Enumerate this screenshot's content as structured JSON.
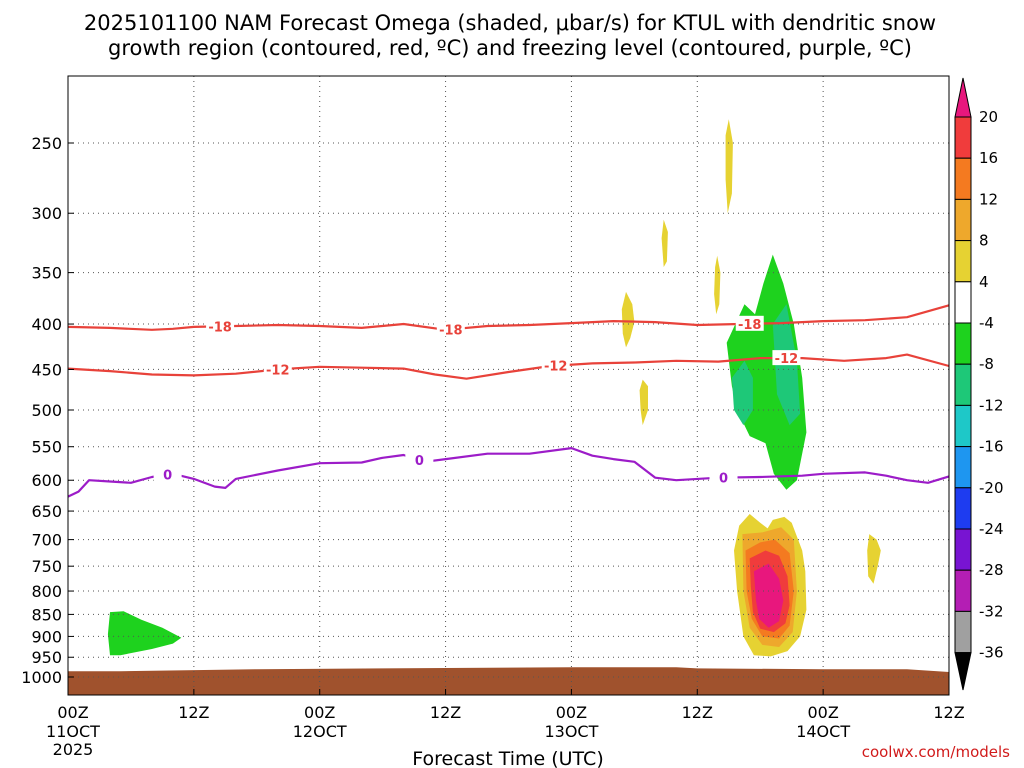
{
  "chart_data": {
    "type": "heatmap",
    "title_line1": "2025101100 NAM Forecast Omega (shaded, μbar/s) for KTUL with dendritic snow",
    "title_line2": "growth region (contoured, red, ºC) and freezing level (contoured, purple, ºC)",
    "xlabel": "Forecast Time (UTC)",
    "credit": "coolwx.com/models",
    "x_ticks": [
      {
        "hour": 0,
        "top": "00Z",
        "mid": "11OCT",
        "bottom": "2025"
      },
      {
        "hour": 12,
        "top": "12Z",
        "mid": "",
        "bottom": ""
      },
      {
        "hour": 24,
        "top": "00Z",
        "mid": "12OCT",
        "bottom": ""
      },
      {
        "hour": 36,
        "top": "12Z",
        "mid": "",
        "bottom": ""
      },
      {
        "hour": 48,
        "top": "00Z",
        "mid": "13OCT",
        "bottom": ""
      },
      {
        "hour": 60,
        "top": "12Z",
        "mid": "",
        "bottom": ""
      },
      {
        "hour": 72,
        "top": "00Z",
        "mid": "14OCT",
        "bottom": ""
      },
      {
        "hour": 84,
        "top": "12Z",
        "mid": "",
        "bottom": ""
      }
    ],
    "x_range_hours": [
      0,
      84
    ],
    "y_ticks_hpa": [
      250,
      300,
      350,
      400,
      450,
      500,
      550,
      600,
      650,
      700,
      750,
      800,
      850,
      900,
      950,
      1000
    ],
    "y_range_hpa": [
      200,
      1025
    ],
    "y_scale": "log-pressure",
    "grid": true,
    "colorbar": {
      "levels": [
        "20",
        "16",
        "12",
        "8",
        "4",
        "-4",
        "-8",
        "-12",
        "-16",
        "-20",
        "-24",
        "-28",
        "-32",
        "-36"
      ],
      "colors": [
        "#e8177d",
        "#f03c3c",
        "#f47a20",
        "#eea82c",
        "#e6d232",
        "#ffffff",
        "#1ed21e",
        "#1ec878",
        "#1ec8c8",
        "#1e96f0",
        "#1e3cf0",
        "#7814d2",
        "#b41eb4",
        "#a0a0a0",
        "#000000"
      ]
    },
    "contours": [
      {
        "label": "-18",
        "color": "#e8423a",
        "points": [
          [
            0,
            403
          ],
          [
            4,
            404
          ],
          [
            8,
            406
          ],
          [
            10,
            405
          ],
          [
            12,
            403
          ],
          [
            16,
            402
          ],
          [
            20,
            401
          ],
          [
            24,
            402
          ],
          [
            28,
            404
          ],
          [
            32,
            400
          ],
          [
            36,
            406
          ],
          [
            40,
            402
          ],
          [
            44,
            401
          ],
          [
            48,
            399
          ],
          [
            52,
            397
          ],
          [
            56,
            398
          ],
          [
            60,
            401
          ],
          [
            64,
            400
          ],
          [
            68,
            399
          ],
          [
            72,
            397
          ],
          [
            76,
            396
          ],
          [
            80,
            393
          ],
          [
            84,
            381
          ]
        ],
        "label_hours": [
          14.5,
          36.5,
          65
        ]
      },
      {
        "label": "-12",
        "color": "#e8423a",
        "points": [
          [
            0,
            449
          ],
          [
            4,
            452
          ],
          [
            8,
            456
          ],
          [
            12,
            457
          ],
          [
            16,
            455
          ],
          [
            20,
            450
          ],
          [
            24,
            447
          ],
          [
            28,
            448
          ],
          [
            32,
            449
          ],
          [
            35,
            456
          ],
          [
            38,
            461
          ],
          [
            42,
            453
          ],
          [
            46,
            446
          ],
          [
            50,
            443
          ],
          [
            54,
            442
          ],
          [
            58,
            440
          ],
          [
            62,
            441
          ],
          [
            66,
            437
          ],
          [
            70,
            437
          ],
          [
            74,
            440
          ],
          [
            78,
            437
          ],
          [
            80,
            433
          ],
          [
            84,
            446
          ]
        ],
        "label_hours": [
          20,
          46.5,
          68.5
        ]
      },
      {
        "label": "0",
        "color": "#9c1cc8",
        "points": [
          [
            0,
            626
          ],
          [
            1,
            618
          ],
          [
            2,
            600
          ],
          [
            4,
            602
          ],
          [
            6,
            604
          ],
          [
            8,
            595
          ],
          [
            10,
            590
          ],
          [
            12,
            598
          ],
          [
            14,
            610
          ],
          [
            15,
            612
          ],
          [
            16,
            598
          ],
          [
            20,
            585
          ],
          [
            24,
            574
          ],
          [
            28,
            573
          ],
          [
            30,
            566
          ],
          [
            32,
            562
          ],
          [
            34,
            572
          ],
          [
            36,
            568
          ],
          [
            40,
            560
          ],
          [
            44,
            560
          ],
          [
            48,
            552
          ],
          [
            50,
            563
          ],
          [
            52,
            568
          ],
          [
            54,
            572
          ],
          [
            56,
            596
          ],
          [
            58,
            600
          ],
          [
            62,
            596
          ],
          [
            66,
            595
          ],
          [
            70,
            593
          ],
          [
            72,
            590
          ],
          [
            76,
            588
          ],
          [
            78,
            593
          ],
          [
            80,
            600
          ],
          [
            82,
            604
          ],
          [
            84,
            594
          ]
        ],
        "label_hours": [
          9.5,
          33.5,
          62.5
        ]
      }
    ],
    "omega_regions": [
      {
        "omega": -8,
        "pts": [
          [
            4,
            845
          ],
          [
            5.3,
            843
          ],
          [
            7,
            862
          ],
          [
            9,
            880
          ],
          [
            10.8,
            903
          ],
          [
            10,
            917
          ],
          [
            8,
            930
          ],
          [
            5,
            945
          ],
          [
            4,
            945
          ],
          [
            3.8,
            895
          ]
        ]
      },
      {
        "omega": 4,
        "pts": [
          [
            53.2,
            368
          ],
          [
            53.8,
            380
          ],
          [
            54,
            398
          ],
          [
            53.6,
            415
          ],
          [
            53.2,
            425
          ],
          [
            52.9,
            410
          ],
          [
            52.8,
            385
          ]
        ]
      },
      {
        "omega": 4,
        "pts": [
          [
            54.8,
            462
          ],
          [
            55.3,
            470
          ],
          [
            55.3,
            500
          ],
          [
            54.8,
            520
          ],
          [
            54.6,
            500
          ],
          [
            54.5,
            475
          ]
        ]
      },
      {
        "omega": 4,
        "pts": [
          [
            56.8,
            305
          ],
          [
            57.2,
            315
          ],
          [
            57.1,
            340
          ],
          [
            56.8,
            345
          ],
          [
            56.6,
            320
          ]
        ]
      },
      {
        "omega": 4,
        "pts": [
          [
            63,
            235
          ],
          [
            63.4,
            250
          ],
          [
            63.3,
            285
          ],
          [
            62.9,
            300
          ],
          [
            62.7,
            275
          ],
          [
            62.7,
            245
          ]
        ]
      },
      {
        "omega": 4,
        "pts": [
          [
            61.9,
            335
          ],
          [
            62.2,
            350
          ],
          [
            62.1,
            380
          ],
          [
            61.8,
            390
          ],
          [
            61.6,
            370
          ],
          [
            61.7,
            345
          ]
        ]
      },
      {
        "omega": -8,
        "pts": [
          [
            62.8,
            420
          ],
          [
            64.5,
            380
          ],
          [
            65.5,
            390
          ],
          [
            66.3,
            360
          ],
          [
            67.2,
            334
          ],
          [
            68.2,
            360
          ],
          [
            69.2,
            400
          ],
          [
            70,
            460
          ],
          [
            70.4,
            530
          ],
          [
            69.5,
            600
          ],
          [
            68.5,
            615
          ],
          [
            67.3,
            590
          ],
          [
            66.5,
            545
          ],
          [
            65,
            535
          ],
          [
            63.8,
            500
          ],
          [
            63.3,
            470
          ]
        ]
      },
      {
        "omega": -12,
        "pts": [
          [
            63.3,
            460
          ],
          [
            64.5,
            440
          ],
          [
            65.3,
            460
          ],
          [
            65.3,
            500
          ],
          [
            64.4,
            520
          ],
          [
            63.5,
            500
          ]
        ]
      },
      {
        "omega": -12,
        "pts": [
          [
            67.2,
            400
          ],
          [
            68.5,
            380
          ],
          [
            69.5,
            440
          ],
          [
            69.8,
            505
          ],
          [
            68.8,
            520
          ],
          [
            67.6,
            480
          ]
        ]
      },
      {
        "omega": 4,
        "pts": [
          [
            64,
            675
          ],
          [
            65,
            655
          ],
          [
            66,
            670
          ],
          [
            66.7,
            680
          ],
          [
            67.2,
            665
          ],
          [
            68.3,
            660
          ],
          [
            69,
            670
          ],
          [
            70,
            720
          ],
          [
            70.3,
            760
          ],
          [
            70.4,
            840
          ],
          [
            69.8,
            900
          ],
          [
            68.6,
            935
          ],
          [
            67,
            948
          ],
          [
            65.4,
            945
          ],
          [
            64.4,
            900
          ],
          [
            63.8,
            800
          ],
          [
            63.5,
            720
          ]
        ]
      },
      {
        "omega": 8,
        "pts": [
          [
            64.3,
            690
          ],
          [
            66.2,
            687
          ],
          [
            68,
            678
          ],
          [
            69.2,
            700
          ],
          [
            69.5,
            800
          ],
          [
            69.1,
            890
          ],
          [
            67.8,
            925
          ],
          [
            66.2,
            920
          ],
          [
            65,
            880
          ],
          [
            64.4,
            800
          ]
        ]
      },
      {
        "omega": 12,
        "pts": [
          [
            64.6,
            720
          ],
          [
            66,
            705
          ],
          [
            67.4,
            700
          ],
          [
            68.8,
            725
          ],
          [
            69.2,
            800
          ],
          [
            68.8,
            875
          ],
          [
            67.8,
            905
          ],
          [
            66.2,
            900
          ],
          [
            65.2,
            860
          ],
          [
            64.7,
            800
          ]
        ]
      },
      {
        "omega": 16,
        "pts": [
          [
            65,
            735
          ],
          [
            66.5,
            720
          ],
          [
            67.8,
            730
          ],
          [
            68.6,
            770
          ],
          [
            68.8,
            830
          ],
          [
            68.4,
            870
          ],
          [
            67.3,
            890
          ],
          [
            66,
            882
          ],
          [
            65.3,
            845
          ],
          [
            65.1,
            790
          ]
        ]
      },
      {
        "omega": 20,
        "pts": [
          [
            65.4,
            760
          ],
          [
            66.8,
            745
          ],
          [
            67.8,
            775
          ],
          [
            68.2,
            820
          ],
          [
            67.8,
            865
          ],
          [
            66.8,
            880
          ],
          [
            65.9,
            860
          ],
          [
            65.6,
            820
          ]
        ]
      },
      {
        "omega": 4,
        "pts": [
          [
            76.4,
            690
          ],
          [
            77.1,
            700
          ],
          [
            77.5,
            720
          ],
          [
            77.2,
            750
          ],
          [
            76.8,
            785
          ],
          [
            76.3,
            770
          ],
          [
            76.2,
            720
          ]
        ]
      }
    ],
    "terrain": {
      "color": "#a0522d",
      "points": [
        [
          0,
          985
        ],
        [
          5,
          985
        ],
        [
          18,
          980
        ],
        [
          30,
          978
        ],
        [
          48,
          975
        ],
        [
          58,
          975
        ],
        [
          60,
          978
        ],
        [
          72,
          980
        ],
        [
          80,
          980
        ],
        [
          84,
          987
        ]
      ]
    }
  }
}
